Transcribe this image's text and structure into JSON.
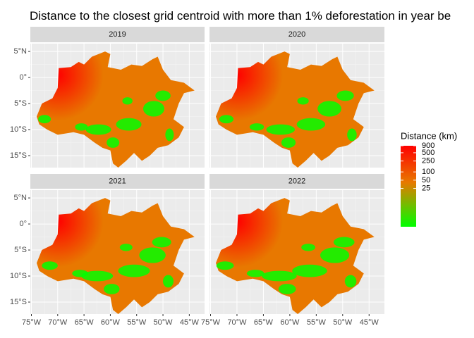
{
  "chart_data": {
    "type": "raster-map",
    "title": "Distance to the closest grid centroid with more than 1% deforestation in year be",
    "facets": [
      "2019",
      "2020",
      "2021",
      "2022"
    ],
    "xlim": [
      -75.2,
      -42.1
    ],
    "ylim": [
      -17.3,
      6.5
    ],
    "xticks": [
      {
        "value": -75,
        "label": "75°W"
      },
      {
        "value": -70,
        "label": "70°W"
      },
      {
        "value": -65,
        "label": "65°W"
      },
      {
        "value": -60,
        "label": "60°W"
      },
      {
        "value": -55,
        "label": "55°W"
      },
      {
        "value": -50,
        "label": "50°W"
      },
      {
        "value": -45,
        "label": "45°W"
      }
    ],
    "yticks": [
      {
        "value": 5,
        "label": "5°N"
      },
      {
        "value": 0,
        "label": "0°"
      },
      {
        "value": -5,
        "label": "5°S"
      },
      {
        "value": -10,
        "label": "10°S"
      },
      {
        "value": -15,
        "label": "15°S"
      }
    ],
    "legend": {
      "title": "Distance (km)",
      "scale": "log",
      "limits": [
        1,
        900
      ],
      "ticks": [
        900,
        500,
        250,
        100,
        50,
        25
      ],
      "colors": [
        "#00ff00",
        "#e87800",
        "#ff0000"
      ]
    }
  }
}
